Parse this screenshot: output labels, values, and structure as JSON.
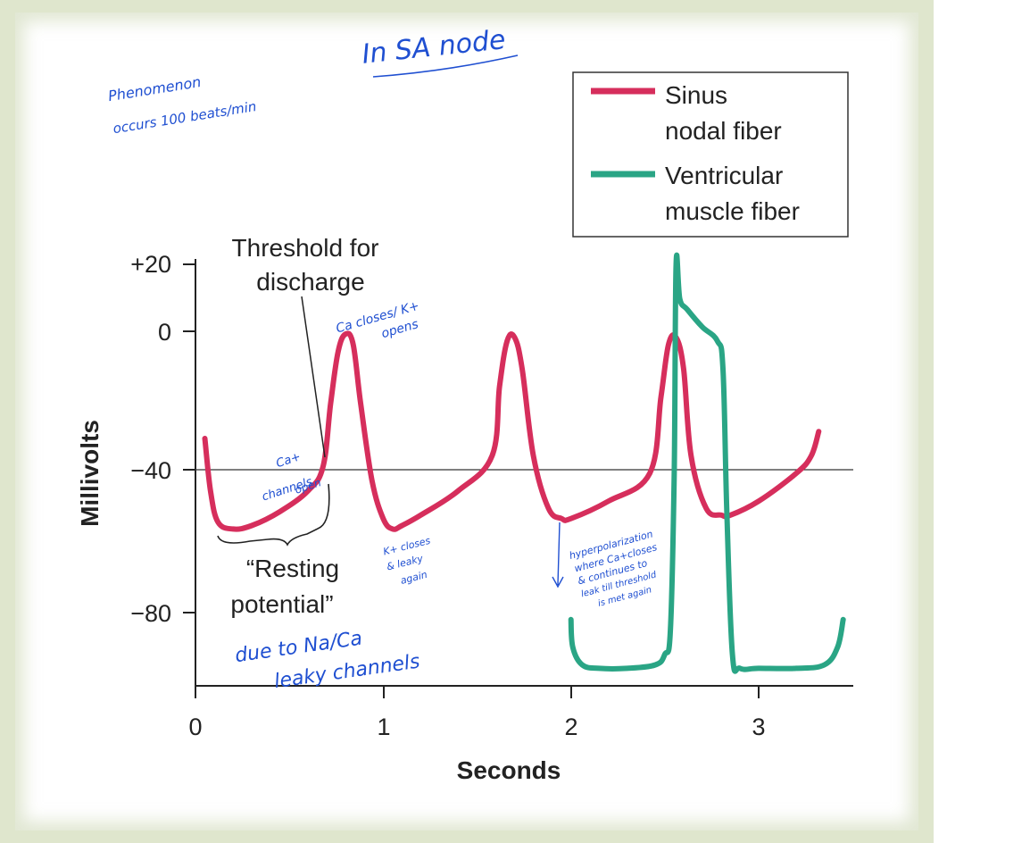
{
  "chart_data": {
    "type": "line",
    "title": "",
    "xlabel": "Seconds",
    "ylabel": "Millivolts",
    "xlim": [
      0,
      3.5
    ],
    "ylim": [
      -100,
      20
    ],
    "x_ticks": [
      0,
      1,
      2,
      3
    ],
    "x_tick_labels": [
      "0",
      "1",
      "2",
      "3"
    ],
    "y_ticks": [
      20,
      0,
      -40,
      -80
    ],
    "y_tick_labels": [
      "+20",
      "0",
      "−40",
      "−80"
    ],
    "threshold_mv": -40,
    "legend": {
      "location": "top-right",
      "entries": [
        "Sinus nodal fiber",
        "Ventricular muscle fiber"
      ]
    },
    "series": [
      {
        "name": "Sinus nodal fiber",
        "color": "#d62e5c",
        "x": [
          0.05,
          0.08,
          0.12,
          0.2,
          0.3,
          0.45,
          0.6,
          0.68,
          0.72,
          0.76,
          0.8,
          0.84,
          0.88,
          0.94,
          1.0,
          1.05,
          1.1,
          1.2,
          1.4,
          1.58,
          1.62,
          1.66,
          1.7,
          1.74,
          1.8,
          1.88,
          1.95,
          2.0,
          2.2,
          2.42,
          2.48,
          2.52,
          2.56,
          2.6,
          2.64,
          2.72,
          2.8,
          2.85,
          3.0,
          3.2,
          3.28,
          3.32
        ],
        "values": [
          -30,
          -45,
          -54,
          -56,
          -55,
          -51,
          -45,
          -38,
          -20,
          -5,
          0,
          -3,
          -20,
          -42,
          -53,
          -56,
          -55,
          -52,
          -45,
          -35,
          -15,
          -2,
          -1,
          -10,
          -35,
          -50,
          -53,
          -53,
          -48,
          -40,
          -18,
          -3,
          -1,
          -10,
          -35,
          -50,
          -52,
          -52,
          -48,
          -40,
          -35,
          -28
        ]
      },
      {
        "name": "Ventricular muscle fiber",
        "color": "#2aa585",
        "x": [
          2.0,
          2.01,
          2.06,
          2.15,
          2.3,
          2.45,
          2.5,
          2.53,
          2.55,
          2.56,
          2.58,
          2.62,
          2.7,
          2.78,
          2.81,
          2.83,
          2.86,
          2.9,
          3.0,
          3.2,
          3.35,
          3.42,
          3.45
        ],
        "values": [
          -82,
          -90,
          -95,
          -96,
          -96,
          -95,
          -92,
          -85,
          -40,
          20,
          10,
          7,
          2,
          -2,
          -10,
          -50,
          -92,
          -96,
          -96,
          -96,
          -95,
          -90,
          -82
        ]
      }
    ],
    "annotations": [
      "Threshold for",
      "discharge",
      "“Resting",
      "potential”"
    ]
  },
  "handwritten_notes": {
    "top_title": "In SA node",
    "phenomenon_1": "Phenomenon",
    "phenomenon_2": "occurs 100 beats/min",
    "ca_open_1": "Ca+",
    "ca_open_2": "channels",
    "ca_open_3": "open",
    "ca_close_1": "Ca closes/ K+",
    "ca_close_2": "opens",
    "k_close_1": "K+ closes",
    "k_close_2": "& leaky",
    "k_close_3": "again",
    "hyper_1": "hyperpolarization",
    "hyper_2": "where Ca+closes",
    "hyper_3": "& continues to",
    "hyper_4": "leak till threshold",
    "hyper_5": "is met again",
    "due_1": "due to Na/Ca",
    "due_2": "leaky channels"
  }
}
